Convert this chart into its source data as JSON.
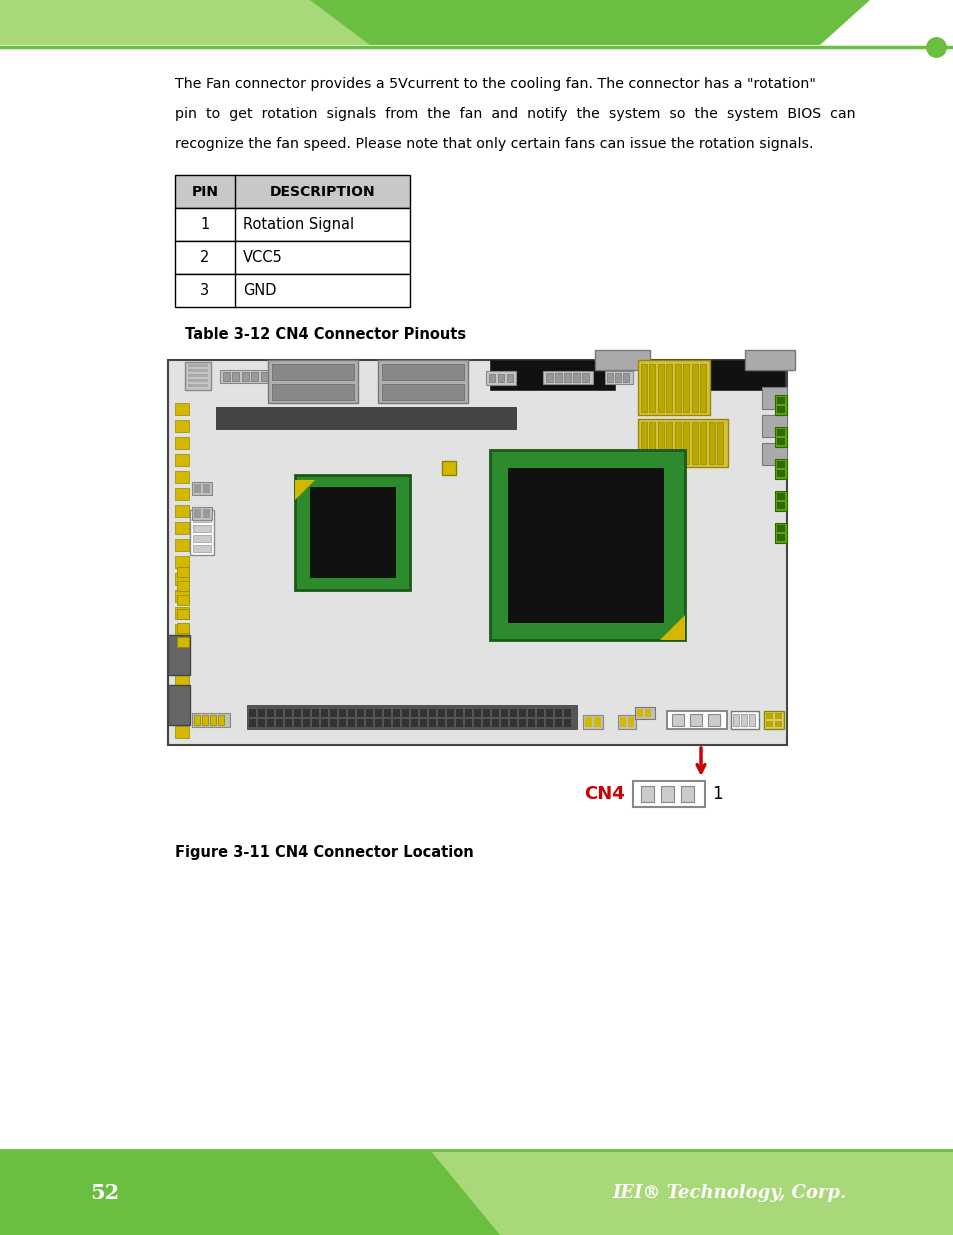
{
  "bg_color": "#ffffff",
  "header_green_dark": "#6abf40",
  "header_green_light": "#a8d878",
  "footer_green": "#6abf40",
  "footer_green_light": "#a8d878",
  "accent_line_color": "#6abf40",
  "accent_dot_color": "#6abf40",
  "body_text_1": "The Fan connector provides a 5Vcurrent to the cooling fan. The connector has a \"rotation\"",
  "body_text_2": "pin  to  get  rotation  signals  from  the  fan  and  notify  the  system  so  the  system  BIOS  can",
  "body_text_3": "recognize the fan speed. Please note that only certain fans can issue the rotation signals.",
  "table_header": [
    "PIN",
    "DESCRIPTION"
  ],
  "table_rows": [
    [
      "1",
      "Rotation Signal"
    ],
    [
      "2",
      "VCC5"
    ],
    [
      "3",
      "GND"
    ]
  ],
  "table_caption": "Table 3-12 CN4 Connector Pinouts",
  "figure_caption": "Figure 3-11 CN4 Connector Location",
  "cn4_label": "CN4",
  "pin1_label": "1",
  "footer_page": "52",
  "footer_company": "IEI® Technology, Corp.",
  "arrow_color": "#cc0000",
  "cn4_label_color": "#cc0000",
  "board_bg": "#e0e0e0",
  "board_edge": "#555555",
  "dark_chip": "#1a1a1a",
  "green_chip": "#2d8a2d",
  "yellow_acc": "#d4b800",
  "dark_gray": "#555555",
  "mid_gray": "#888888",
  "light_gray": "#bbbbbb",
  "yellow_conn": "#d4b800",
  "green_conn": "#6abf00",
  "small_sq_gray": "#aaaaaa"
}
